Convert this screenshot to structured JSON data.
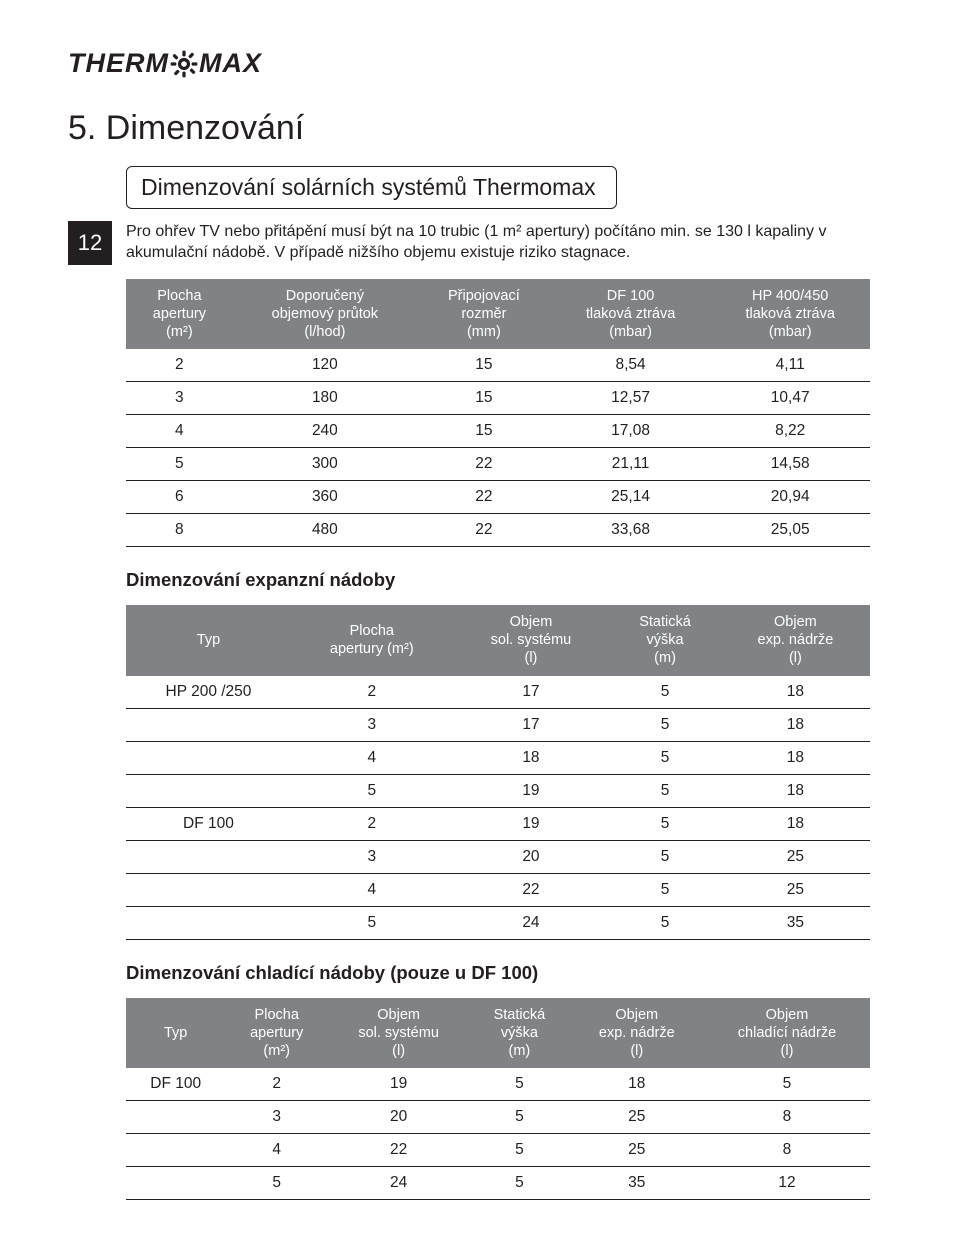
{
  "brand": {
    "part1": "THERM",
    "part2": "MAX"
  },
  "page_number": "12",
  "h1": "5.  Dimenzování",
  "subtitle": "Dimenzování solárních systémů Thermomax",
  "intro": "Pro ohřev TV nebo přitápění musí být na 10 trubic (1 m² apertury) počítáno min. se 130 l kapaliny v akumulační nádobě. V případě nižšího objemu existuje riziko stagnace.",
  "table1": {
    "headers": [
      "Plocha\napertury\n(m²)",
      "Doporučený\nobjemový průtok\n(l/hod)",
      "Připojovací\nrozměr\n(mm)",
      "DF 100\ntlaková ztráva\n(mbar)",
      "HP 400/450\ntlaková ztráva\n(mbar)"
    ],
    "rows": [
      [
        "2",
        "120",
        "15",
        "8,54",
        "4,11"
      ],
      [
        "3",
        "180",
        "15",
        "12,57",
        "10,47"
      ],
      [
        "4",
        "240",
        "15",
        "17,08",
        "8,22"
      ],
      [
        "5",
        "300",
        "22",
        "21,11",
        "14,58"
      ],
      [
        "6",
        "360",
        "22",
        "25,14",
        "20,94"
      ],
      [
        "8",
        "480",
        "22",
        "33,68",
        "25,05"
      ]
    ]
  },
  "section2_title": "Dimenzování expanzní nádoby",
  "table2": {
    "headers": [
      "Typ",
      "Plocha\napertury (m²)",
      "Objem\nsol. systému\n(l)",
      "Statická\nvýška\n(m)",
      "Objem\nexp. nádrže\n(l)"
    ],
    "rows": [
      [
        "HP 200 /250",
        "2",
        "17",
        "5",
        "18"
      ],
      [
        "",
        "3",
        "17",
        "5",
        "18"
      ],
      [
        "",
        "4",
        "18",
        "5",
        "18"
      ],
      [
        "",
        "5",
        "19",
        "5",
        "18"
      ],
      [
        "DF 100",
        "2",
        "19",
        "5",
        "18"
      ],
      [
        "",
        "3",
        "20",
        "5",
        "25"
      ],
      [
        "",
        "4",
        "22",
        "5",
        "25"
      ],
      [
        "",
        "5",
        "24",
        "5",
        "35"
      ]
    ]
  },
  "section3_title": "Dimenzování chladící nádoby (pouze u DF 100)",
  "table3": {
    "headers": [
      "Typ",
      "Plocha\napertury\n(m²)",
      "Objem\nsol. systému\n(l)",
      "Statická\nvýška\n(m)",
      "Objem\nexp. nádrže\n(l)",
      "Objem\nchladící nádrže\n(l)"
    ],
    "rows": [
      [
        "DF 100",
        "2",
        "19",
        "5",
        "18",
        "5"
      ],
      [
        "",
        "3",
        "20",
        "5",
        "25",
        "8"
      ],
      [
        "",
        "4",
        "22",
        "5",
        "25",
        "8"
      ],
      [
        "",
        "5",
        "24",
        "5",
        "35",
        "12"
      ]
    ]
  }
}
